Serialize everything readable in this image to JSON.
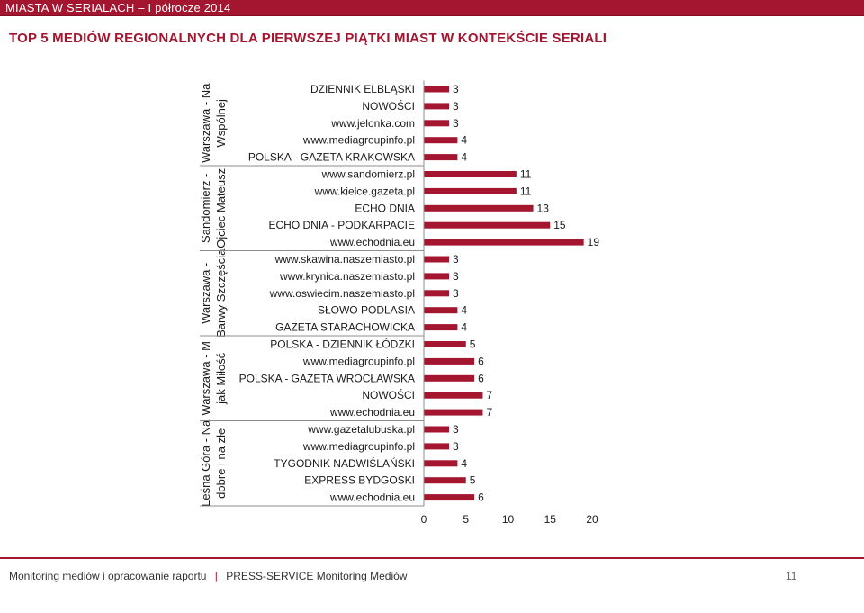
{
  "header": {
    "title": "MIASTA W SERIALACH – I półrocze 2014"
  },
  "page_title": "TOP 5 MEDIÓW REGIONALNYCH DLA PIERWSZEJ PIĄTKI MIAST W KONTEKŚCIE SERIALI",
  "chart_data": {
    "type": "bar",
    "orientation": "horizontal",
    "xlim": [
      0,
      20
    ],
    "xticks": [
      0,
      5,
      10,
      15,
      20
    ],
    "bar_color": "#a4162f",
    "groups": [
      {
        "label_lines": [
          "Warszawa - Na",
          "Wspólnej"
        ],
        "items": [
          {
            "label": "DZIENNIK ELBLĄSKI",
            "value": 3
          },
          {
            "label": "NOWOŚCI",
            "value": 3
          },
          {
            "label": "www.jelonka.com",
            "value": 3
          },
          {
            "label": "www.mediagroupinfo.pl",
            "value": 4
          },
          {
            "label": "POLSKA - GAZETA KRAKOWSKA",
            "value": 4
          }
        ]
      },
      {
        "label_lines": [
          "Sandomierz -",
          "Ojciec Mateusz"
        ],
        "items": [
          {
            "label": "www.sandomierz.pl",
            "value": 11
          },
          {
            "label": "www.kielce.gazeta.pl",
            "value": 11
          },
          {
            "label": "ECHO DNIA",
            "value": 13
          },
          {
            "label": "ECHO DNIA - PODKARPACIE",
            "value": 15
          },
          {
            "label": "www.echodnia.eu",
            "value": 19
          }
        ]
      },
      {
        "label_lines": [
          "Warszawa -",
          "Barwy Szczęścia"
        ],
        "items": [
          {
            "label": "www.skawina.naszemiasto.pl",
            "value": 3
          },
          {
            "label": "www.krynica.naszemiasto.pl",
            "value": 3
          },
          {
            "label": "www.oswiecim.naszemiasto.pl",
            "value": 3
          },
          {
            "label": "SŁOWO PODLASIA",
            "value": 4
          },
          {
            "label": "GAZETA STARACHOWICKA",
            "value": 4
          }
        ]
      },
      {
        "label_lines": [
          "Warszawa - M",
          "jak Miłość"
        ],
        "items": [
          {
            "label": "POLSKA - DZIENNIK ŁÓDZKI",
            "value": 5
          },
          {
            "label": "www.mediagroupinfo.pl",
            "value": 6
          },
          {
            "label": "POLSKA - GAZETA WROCŁAWSKA",
            "value": 6
          },
          {
            "label": "NOWOŚCI",
            "value": 7
          },
          {
            "label": "www.echodnia.eu",
            "value": 7
          }
        ]
      },
      {
        "label_lines": [
          "Leśna Góra - Na",
          "dobre i na złe"
        ],
        "items": [
          {
            "label": "www.gazetalubuska.pl",
            "value": 3
          },
          {
            "label": "www.mediagroupinfo.pl",
            "value": 3
          },
          {
            "label": "TYGODNIK NADWIŚLAŃSKI",
            "value": 4
          },
          {
            "label": "EXPRESS BYDGOSKI",
            "value": 5
          },
          {
            "label": "www.echodnia.eu",
            "value": 6
          }
        ]
      }
    ]
  },
  "footer": {
    "left_text": "Monitoring mediów i opracowanie raportu",
    "right_text": "PRESS-SERVICE Monitoring Mediów",
    "separator": "|",
    "page_number": "11"
  }
}
